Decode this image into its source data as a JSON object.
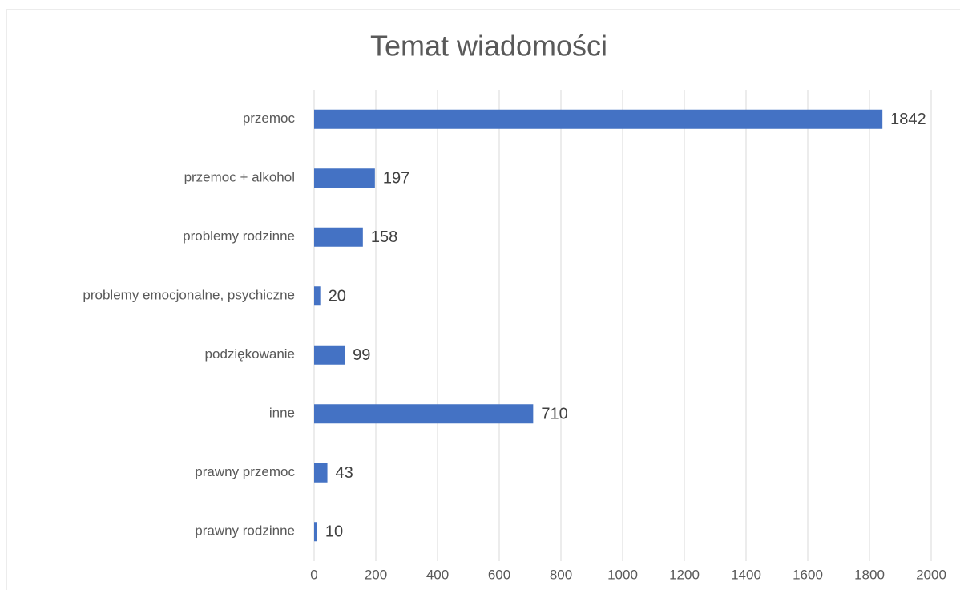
{
  "chart_data": {
    "type": "bar",
    "orientation": "horizontal",
    "title": "Temat wiadomości",
    "categories": [
      "przemoc",
      "przemoc + alkohol",
      "problemy rodzinne",
      "problemy emocjonalne, psychiczne",
      "podziękowanie",
      "inne",
      "prawny przemoc",
      "prawny rodzinne"
    ],
    "values": [
      1842,
      197,
      158,
      20,
      99,
      710,
      43,
      10
    ],
    "color": "#4472c4",
    "xlim": [
      0,
      2000
    ],
    "xticks": [
      0,
      200,
      400,
      600,
      800,
      1000,
      1200,
      1400,
      1600,
      1800,
      2000
    ],
    "grid": true,
    "data_labels": true
  }
}
